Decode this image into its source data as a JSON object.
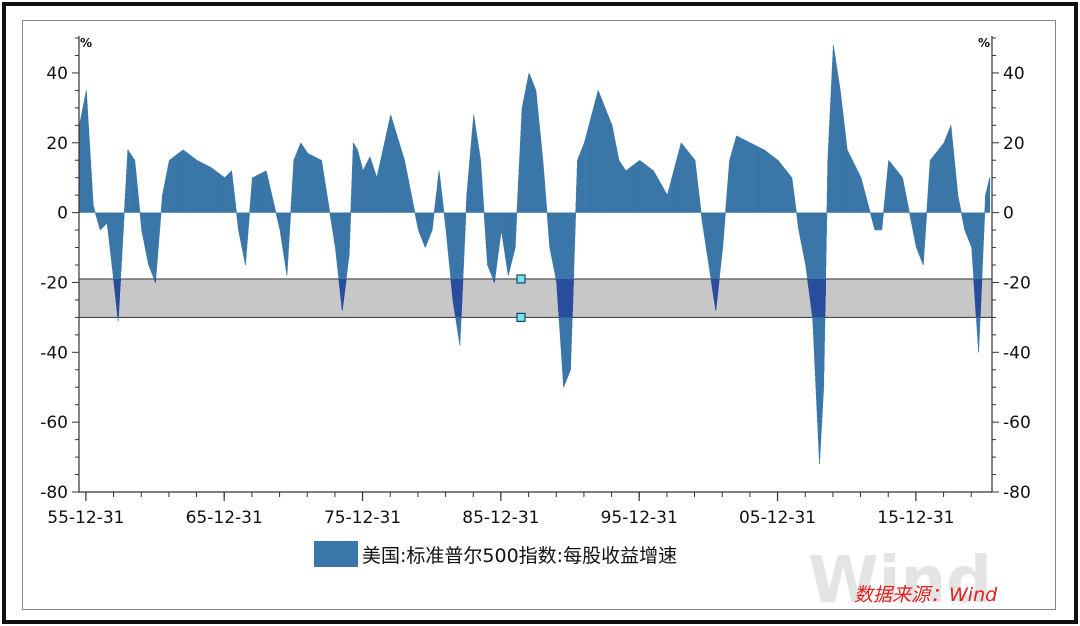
{
  "chart_data": {
    "type": "area",
    "title": "",
    "y_unit_left": "%",
    "y_unit_right": "%",
    "ylim": [
      -80,
      50
    ],
    "y_ticks": [
      40,
      20,
      0,
      -20,
      -40,
      -60,
      -80
    ],
    "y_tick_labels": [
      "40",
      "20",
      "0",
      "-20",
      "-40",
      "-60",
      "-80"
    ],
    "xlim": [
      1955.5,
      2021.5
    ],
    "x_ticks": [
      1955.997,
      1965.997,
      1975.997,
      1985.997,
      1995.997,
      2005.997,
      2015.997
    ],
    "x_tick_labels": [
      "55-12-31",
      "65-12-31",
      "75-12-31",
      "85-12-31",
      "95-12-31",
      "05-12-31",
      "15-12-31"
    ],
    "series": [
      {
        "name": "美国:标准普尔500指数:每股收益增速",
        "color": "#3b77a8",
        "highlight_color": "#25409a",
        "x": [
          1955.5,
          1956.0,
          1956.5,
          1957.0,
          1957.5,
          1958.0,
          1958.3,
          1958.6,
          1959.0,
          1959.5,
          1960.0,
          1960.5,
          1961.0,
          1961.5,
          1962.0,
          1963.0,
          1964.0,
          1965.0,
          1966.0,
          1966.5,
          1967.0,
          1967.5,
          1968.0,
          1969.0,
          1970.0,
          1970.5,
          1971.0,
          1971.5,
          1972.0,
          1973.0,
          1974.0,
          1974.5,
          1975.0,
          1975.3,
          1975.6,
          1976.0,
          1976.5,
          1977.0,
          1978.0,
          1979.0,
          1980.0,
          1980.5,
          1981.0,
          1981.5,
          1982.0,
          1982.5,
          1983.0,
          1983.5,
          1984.0,
          1984.5,
          1985.0,
          1985.5,
          1986.0,
          1986.5,
          1987.0,
          1987.5,
          1988.0,
          1988.5,
          1989.0,
          1989.5,
          1990.0,
          1990.5,
          1991.0,
          1991.5,
          1992.0,
          1993.0,
          1994.0,
          1994.5,
          1995.0,
          1996.0,
          1997.0,
          1998.0,
          1999.0,
          2000.0,
          2000.5,
          2001.0,
          2001.5,
          2002.0,
          2002.5,
          2003.0,
          2004.0,
          2005.0,
          2006.0,
          2007.0,
          2007.5,
          2008.0,
          2008.5,
          2009.0,
          2009.3,
          2009.6,
          2010.0,
          2010.5,
          2011.0,
          2012.0,
          2013.0,
          2013.5,
          2014.0,
          2015.0,
          2016.0,
          2016.5,
          2017.0,
          2018.0,
          2018.5,
          2019.0,
          2019.5,
          2020.0,
          2020.5,
          2021.0,
          2021.3
        ],
        "values": [
          25,
          35,
          2,
          -5,
          -3,
          -20,
          -31,
          -10,
          18,
          15,
          -5,
          -15,
          -20,
          5,
          15,
          18,
          15,
          13,
          10,
          12,
          -5,
          -15,
          10,
          12,
          -5,
          -18,
          15,
          20,
          17,
          15,
          -10,
          -28,
          -12,
          20,
          18,
          12,
          16,
          10,
          28,
          15,
          -5,
          -10,
          -5,
          12,
          -5,
          -25,
          -38,
          5,
          28,
          15,
          -15,
          -20,
          -5,
          -18,
          -10,
          30,
          40,
          35,
          15,
          -10,
          -20,
          -50,
          -45,
          15,
          20,
          35,
          25,
          15,
          12,
          15,
          12,
          5,
          20,
          15,
          -2,
          -15,
          -28,
          -10,
          15,
          22,
          20,
          18,
          15,
          10,
          -5,
          -15,
          -30,
          -72,
          -50,
          15,
          48,
          35,
          18,
          10,
          -5,
          -5,
          15,
          10,
          -10,
          -15,
          15,
          20,
          25,
          5,
          -5,
          -10,
          -40,
          5,
          10
        ]
      }
    ],
    "band": {
      "y_range": [
        -30,
        -19
      ],
      "color": "#c7c7c7",
      "border": "#333333"
    },
    "legend": {
      "position": "bottom-center",
      "label": "美国:标准普尔500指数:每股收益增速"
    },
    "source_label": "数据来源：Wind",
    "watermark": "Wind"
  }
}
